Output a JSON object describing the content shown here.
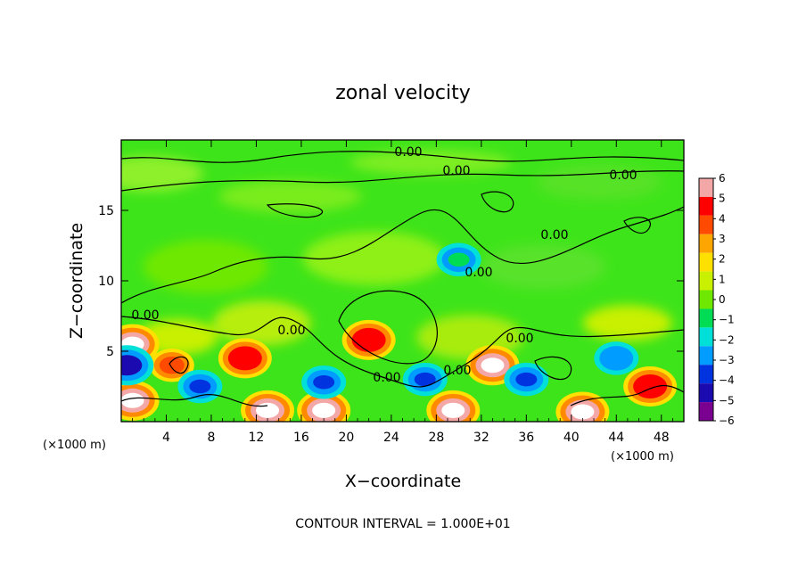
{
  "chart_data": {
    "type": "heatmap",
    "title": "zonal velocity",
    "xlabel": "X−coordinate",
    "ylabel": "Z−coordinate",
    "x_unit": "(×1000 m)",
    "y_unit": "(×1000 m)",
    "xlim": [
      0,
      50
    ],
    "ylim": [
      0,
      20
    ],
    "x_ticks": [
      4,
      8,
      12,
      16,
      20,
      24,
      28,
      32,
      36,
      40,
      44,
      48
    ],
    "y_ticks": [
      5,
      10,
      15
    ],
    "colorbar": {
      "levels": [
        6,
        5,
        4,
        3,
        2,
        1,
        0,
        -1,
        -2,
        -3,
        -4,
        -5,
        -6
      ],
      "level_labels": [
        "6",
        "5",
        "4",
        "3",
        "2",
        "1",
        "0",
        "−1",
        "−2",
        "−3",
        "−4",
        "−5",
        "−6"
      ],
      "colors": [
        "#f4a7a7",
        "#ff0000",
        "#ff4a00",
        "#ffa500",
        "#ffe000",
        "#c8f000",
        "#6ee800",
        "#00dd55",
        "#00e0d8",
        "#009cff",
        "#0033e0",
        "#1a0ab0",
        "#7a0090"
      ]
    },
    "contour_labels": [
      "0.00",
      "0.00",
      "0.00",
      "0.00",
      "0.00",
      "0.00",
      "0.00",
      "0.00",
      "0.00",
      "0.00"
    ],
    "features": [
      {
        "x": 1,
        "z": 5.5,
        "value": 6
      },
      {
        "x": 1,
        "z": 1.5,
        "value": 6
      },
      {
        "x": 4.5,
        "z": 4.0,
        "value": 4
      },
      {
        "x": 11,
        "z": 4.5,
        "value": 5
      },
      {
        "x": 13,
        "z": 0.8,
        "value": 6
      },
      {
        "x": 18,
        "z": 0.8,
        "value": 6
      },
      {
        "x": 22,
        "z": 5.8,
        "value": 5
      },
      {
        "x": 29.5,
        "z": 0.8,
        "value": 6
      },
      {
        "x": 33,
        "z": 4.0,
        "value": 6
      },
      {
        "x": 41,
        "z": 0.7,
        "value": 6
      },
      {
        "x": 47,
        "z": 2.5,
        "value": 5
      },
      {
        "x": 0.5,
        "z": 4.0,
        "value": -5
      },
      {
        "x": 7,
        "z": 2.5,
        "value": -4
      },
      {
        "x": 18,
        "z": 2.8,
        "value": -4
      },
      {
        "x": 27,
        "z": 3.0,
        "value": -4
      },
      {
        "x": 36,
        "z": 3.0,
        "value": -4
      },
      {
        "x": 44,
        "z": 4.5,
        "value": -3
      },
      {
        "x": 30,
        "z": 11.5,
        "value": -1
      }
    ],
    "grid": false
  },
  "footer": {
    "contour_interval": "CONTOUR INTERVAL = 1.000E+01"
  }
}
